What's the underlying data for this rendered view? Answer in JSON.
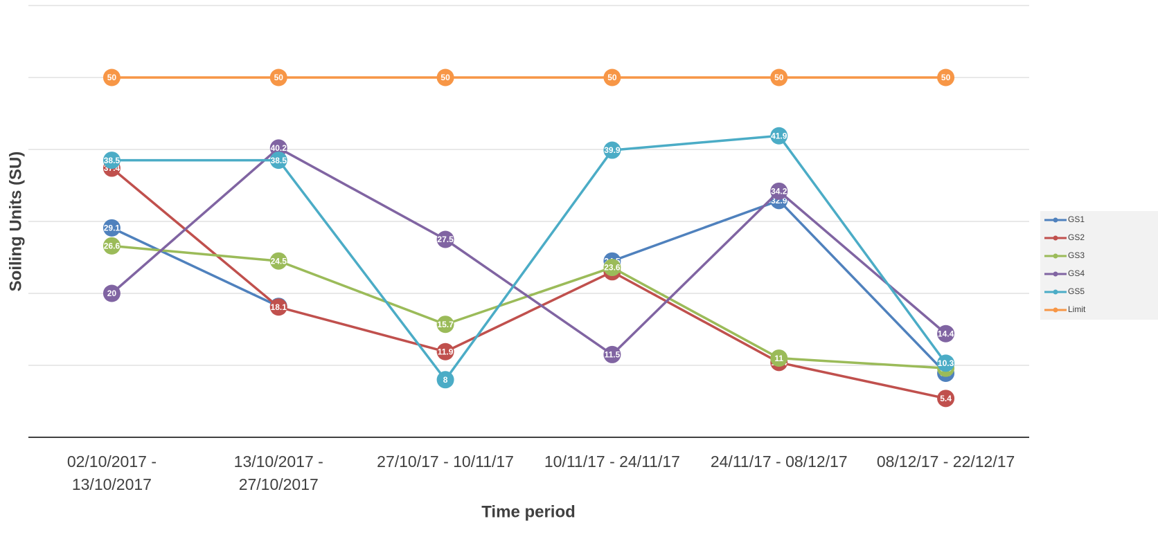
{
  "chart_data": {
    "type": "line",
    "x_label": "Time period",
    "y_label": "Soiling Units (SU)",
    "categories": [
      "02/10/2017 - 13/10/2017",
      "13/10/2017 - 27/10/2017",
      "27/10/17 - 10/11/17",
      "10/11/17 - 24/11/17",
      "24/11/17 - 08/12/17",
      "08/12/17 - 22/12/17"
    ],
    "series": [
      {
        "name": "GS1",
        "color": "#4f81bd",
        "values": [
          29.1,
          18.2,
          null,
          24.5,
          32.9,
          8.9
        ]
      },
      {
        "name": "GS2",
        "color": "#c0504d",
        "values": [
          37.4,
          18.1,
          11.9,
          23,
          10.4,
          5.4
        ]
      },
      {
        "name": "GS3",
        "color": "#9bbb59",
        "values": [
          26.6,
          24.5,
          15.7,
          23.6,
          11,
          9.6
        ]
      },
      {
        "name": "GS4",
        "color": "#8064a2",
        "values": [
          20,
          40.2,
          27.5,
          11.5,
          34.2,
          14.4
        ]
      },
      {
        "name": "GS5",
        "color": "#4bacc6",
        "values": [
          38.5,
          38.5,
          8,
          39.9,
          41.9,
          10.3
        ]
      },
      {
        "name": "Limit",
        "color": "#f79646",
        "values": [
          50,
          50,
          50,
          50,
          50,
          50
        ]
      }
    ],
    "ylim": [
      0,
      60
    ],
    "yticks": [
      0,
      10,
      20,
      30,
      40,
      50,
      60
    ],
    "grid": true,
    "legend": "right"
  }
}
